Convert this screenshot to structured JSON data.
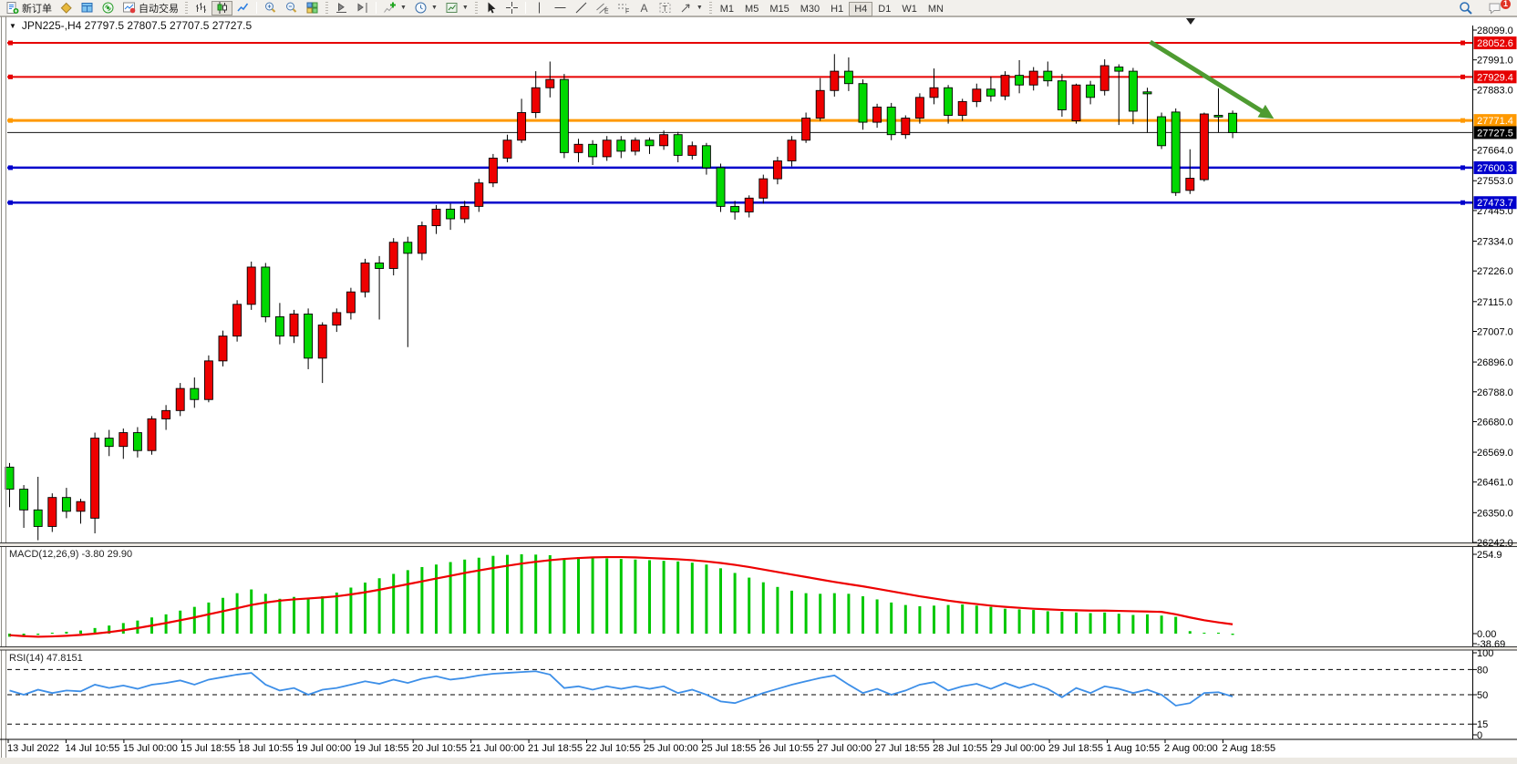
{
  "toolbar": {
    "new_order_label": "新订单",
    "autotrade_label": "自动交易",
    "timeframes": [
      "M1",
      "M5",
      "M15",
      "M30",
      "H1",
      "H4",
      "D1",
      "W1",
      "MN"
    ],
    "active_timeframe": "H4",
    "notification_count": "1"
  },
  "chart": {
    "title": "JPN225-,H4  27797.5 27807.5 27707.5 27727.5",
    "symbol": "JPN225-",
    "period": "H4",
    "open": "27797.5",
    "high": "27807.5",
    "low": "27707.5",
    "close": "27727.5"
  },
  "indicators": {
    "macd_label": "MACD(12,26,9) -3.80 29.90",
    "rsi_label": "RSI(14) 47.8151",
    "macd_axis": [
      {
        "v": 254.9,
        "label": "254.9"
      },
      {
        "v": 0,
        "label": "0.00"
      },
      {
        "v": -38.69,
        "label": "-38.69"
      }
    ],
    "rsi_axis": [
      {
        "v": 100,
        "label": "100"
      },
      {
        "v": 80,
        "label": "80"
      },
      {
        "v": 50,
        "label": "50"
      },
      {
        "v": 15,
        "label": "15"
      },
      {
        "v": 0,
        "label": "0"
      }
    ]
  },
  "chart_data": {
    "type": "candlestick",
    "symbol": "JPN225-",
    "timeframe": "H4",
    "ylim": [
      26242,
      28099
    ],
    "up_color": "#ee0000",
    "down_color": "#00d800",
    "y_ticks": [
      28099.0,
      27991.0,
      27883.0,
      27664.0,
      27553.0,
      27445.0,
      27334.0,
      27226.0,
      27115.0,
      27007.0,
      26896.0,
      26788.0,
      26680.0,
      26569.0,
      26461.0,
      26350.0,
      26242.0
    ],
    "x_labels": [
      "13 Jul 2022",
      "14 Jul 10:55",
      "15 Jul 00:00",
      "15 Jul 18:55",
      "18 Jul 10:55",
      "19 Jul 00:00",
      "19 Jul 18:55",
      "20 Jul 10:55",
      "21 Jul 00:00",
      "21 Jul 18:55",
      "22 Jul 10:55",
      "25 Jul 00:00",
      "25 Jul 18:55",
      "26 Jul 10:55",
      "27 Jul 00:00",
      "27 Jul 18:55",
      "28 Jul 10:55",
      "29 Jul 00:00",
      "29 Jul 18:55",
      "1 Aug 10:55",
      "2 Aug 00:00",
      "2 Aug 18:55"
    ],
    "hlines": [
      {
        "price": 28052.6,
        "label": "28052.6",
        "color": "#e60000",
        "width": 2,
        "handles": true,
        "type": "resistance"
      },
      {
        "price": 27929.4,
        "label": "27929.4",
        "color": "#e60000",
        "width": 2,
        "handles": true,
        "type": "resistance"
      },
      {
        "price": 27771.4,
        "label": "27771.4",
        "color": "#ff9900",
        "width": 3,
        "handles": true,
        "type": "pivot"
      },
      {
        "price": 27727.5,
        "label": "27727.5",
        "color": "#111111",
        "width": 1,
        "handles": false,
        "type": "last_price"
      },
      {
        "price": 27600.3,
        "label": "27600.3",
        "color": "#0000cc",
        "width": 2.5,
        "handles": true,
        "type": "support"
      },
      {
        "price": 27473.7,
        "label": "27473.7",
        "color": "#0000cc",
        "width": 2.5,
        "handles": true,
        "type": "support"
      }
    ],
    "annotation_arrow": {
      "from": {
        "bar": 80.2,
        "price": 28056
      },
      "to": {
        "bar": 88.9,
        "price": 27778
      },
      "color": "#4e9b31",
      "width": 5
    },
    "ohlc": [
      [
        26515,
        26530,
        26370,
        26435
      ],
      [
        26435,
        26450,
        26295,
        26360
      ],
      [
        26360,
        26480,
        26250,
        26300
      ],
      [
        26300,
        26420,
        26280,
        26405
      ],
      [
        26405,
        26440,
        26330,
        26355
      ],
      [
        26355,
        26400,
        26310,
        26390
      ],
      [
        26330,
        26640,
        26275,
        26620
      ],
      [
        26620,
        26650,
        26555,
        26590
      ],
      [
        26590,
        26655,
        26545,
        26640
      ],
      [
        26640,
        26660,
        26550,
        26575
      ],
      [
        26575,
        26700,
        26560,
        26690
      ],
      [
        26690,
        26740,
        26650,
        26720
      ],
      [
        26720,
        26820,
        26700,
        26800
      ],
      [
        26800,
        26840,
        26730,
        26760
      ],
      [
        26760,
        26920,
        26750,
        26900
      ],
      [
        26900,
        27010,
        26880,
        26990
      ],
      [
        26990,
        27120,
        26970,
        27105
      ],
      [
        27105,
        27260,
        27085,
        27240
      ],
      [
        27240,
        27255,
        27040,
        27060
      ],
      [
        27060,
        27110,
        26960,
        26990
      ],
      [
        26990,
        27085,
        26965,
        27070
      ],
      [
        27070,
        27090,
        26870,
        26910
      ],
      [
        26910,
        27040,
        26820,
        27030
      ],
      [
        27030,
        27090,
        27005,
        27075
      ],
      [
        27075,
        27165,
        27050,
        27150
      ],
      [
        27150,
        27270,
        27130,
        27255
      ],
      [
        27255,
        27280,
        27050,
        27235
      ],
      [
        27235,
        27345,
        27210,
        27330
      ],
      [
        27330,
        27350,
        26950,
        27290
      ],
      [
        27290,
        27405,
        27265,
        27390
      ],
      [
        27390,
        27465,
        27360,
        27450
      ],
      [
        27450,
        27470,
        27375,
        27415
      ],
      [
        27415,
        27480,
        27400,
        27460
      ],
      [
        27460,
        27560,
        27440,
        27545
      ],
      [
        27545,
        27650,
        27530,
        27635
      ],
      [
        27635,
        27720,
        27620,
        27700
      ],
      [
        27700,
        27850,
        27690,
        27800
      ],
      [
        27800,
        27950,
        27780,
        27890
      ],
      [
        27890,
        27985,
        27855,
        27920
      ],
      [
        27920,
        27940,
        27635,
        27655
      ],
      [
        27655,
        27705,
        27620,
        27685
      ],
      [
        27685,
        27700,
        27610,
        27640
      ],
      [
        27640,
        27715,
        27625,
        27700
      ],
      [
        27700,
        27715,
        27635,
        27660
      ],
      [
        27660,
        27710,
        27645,
        27700
      ],
      [
        27700,
        27710,
        27650,
        27680
      ],
      [
        27680,
        27735,
        27665,
        27720
      ],
      [
        27720,
        27730,
        27620,
        27645
      ],
      [
        27645,
        27695,
        27630,
        27680
      ],
      [
        27680,
        27690,
        27575,
        27600
      ],
      [
        27600,
        27615,
        27440,
        27460
      ],
      [
        27460,
        27480,
        27412,
        27440
      ],
      [
        27440,
        27500,
        27420,
        27490
      ],
      [
        27490,
        27575,
        27470,
        27560
      ],
      [
        27560,
        27640,
        27540,
        27625
      ],
      [
        27625,
        27715,
        27605,
        27700
      ],
      [
        27700,
        27800,
        27690,
        27780
      ],
      [
        27780,
        27925,
        27770,
        27880
      ],
      [
        27880,
        28012,
        27858,
        27950
      ],
      [
        27950,
        28000,
        27878,
        27905
      ],
      [
        27905,
        27920,
        27738,
        27765
      ],
      [
        27765,
        27832,
        27745,
        27820
      ],
      [
        27820,
        27835,
        27700,
        27720
      ],
      [
        27720,
        27790,
        27705,
        27780
      ],
      [
        27780,
        27870,
        27760,
        27855
      ],
      [
        27855,
        27960,
        27830,
        27890
      ],
      [
        27890,
        27900,
        27760,
        27790
      ],
      [
        27790,
        27850,
        27770,
        27840
      ],
      [
        27840,
        27905,
        27820,
        27885
      ],
      [
        27885,
        27930,
        27840,
        27860
      ],
      [
        27860,
        27950,
        27845,
        27935
      ],
      [
        27935,
        27990,
        27870,
        27900
      ],
      [
        27900,
        27965,
        27880,
        27950
      ],
      [
        27950,
        27985,
        27895,
        27915
      ],
      [
        27915,
        27940,
        27785,
        27810
      ],
      [
        27770,
        27905,
        27760,
        27900
      ],
      [
        27900,
        27915,
        27830,
        27855
      ],
      [
        27880,
        27993,
        27862,
        27970
      ],
      [
        27965,
        27975,
        27755,
        27950
      ],
      [
        27950,
        27962,
        27758,
        27805
      ],
      [
        27875,
        27890,
        27727,
        27868
      ],
      [
        27785,
        27800,
        27668,
        27680
      ],
      [
        27802,
        27815,
        27498,
        27510
      ],
      [
        27518,
        27667,
        27505,
        27562
      ],
      [
        27557,
        27800,
        27550,
        27795
      ],
      [
        27790,
        27888,
        27729,
        27784
      ],
      [
        27797.5,
        27807.5,
        27707.5,
        27727.5
      ]
    ],
    "macd": {
      "params": "12,26,9",
      "last_macd": -3.8,
      "last_signal": 29.9,
      "ylim": [
        -38.69,
        254.9
      ],
      "histogram": [
        -10,
        -7,
        -4,
        3,
        6,
        10,
        18,
        26,
        34,
        42,
        52,
        62,
        74,
        86,
        100,
        115,
        130,
        142,
        128,
        112,
        118,
        112,
        120,
        132,
        148,
        164,
        178,
        192,
        204,
        214,
        222,
        230,
        238,
        244,
        250,
        253,
        255,
        254,
        252,
        240,
        246,
        244,
        242,
        240,
        238,
        236,
        234,
        232,
        228,
        222,
        210,
        195,
        180,
        165,
        150,
        138,
        130,
        128,
        130,
        128,
        120,
        110,
        100,
        92,
        88,
        90,
        92,
        94,
        90,
        86,
        80,
        78,
        76,
        72,
        70,
        68,
        66,
        68,
        64,
        60,
        62,
        58,
        54,
        8,
        3,
        3,
        -4
      ],
      "signal": [
        -5,
        -8,
        -10,
        -9,
        -7,
        -4,
        0,
        5,
        11,
        18,
        26,
        34,
        43,
        52,
        62,
        72,
        82,
        92,
        100,
        106,
        110,
        113,
        116,
        120,
        126,
        133,
        141,
        150,
        159,
        168,
        177,
        186,
        195,
        203,
        211,
        218,
        225,
        231,
        236,
        240,
        243,
        245,
        246,
        246,
        245,
        243,
        241,
        239,
        236,
        232,
        227,
        221,
        214,
        206,
        198,
        190,
        182,
        174,
        166,
        159,
        152,
        144,
        136,
        128,
        120,
        113,
        106,
        100,
        95,
        90,
        86,
        83,
        80,
        78,
        76,
        75,
        74,
        74,
        73,
        72,
        71,
        70,
        62,
        52,
        43,
        36,
        30
      ]
    },
    "rsi": {
      "period": 14,
      "last": 47.8151,
      "levels": [
        80,
        50,
        15
      ],
      "ylim": [
        0,
        100
      ],
      "values": [
        55,
        50,
        56,
        52,
        55,
        54,
        62,
        58,
        61,
        57,
        62,
        64,
        67,
        62,
        68,
        71,
        74,
        76,
        62,
        55,
        58,
        50,
        56,
        58,
        62,
        66,
        63,
        68,
        64,
        69,
        72,
        68,
        70,
        73,
        75,
        76,
        77,
        78,
        74,
        58,
        60,
        56,
        60,
        57,
        60,
        57,
        60,
        52,
        56,
        50,
        42,
        40,
        46,
        52,
        57,
        62,
        66,
        70,
        73,
        62,
        52,
        57,
        50,
        55,
        62,
        65,
        55,
        60,
        63,
        57,
        64,
        58,
        63,
        57,
        47,
        58,
        52,
        60,
        57,
        52,
        56,
        50,
        37,
        40,
        52,
        53,
        47.8
      ]
    }
  }
}
